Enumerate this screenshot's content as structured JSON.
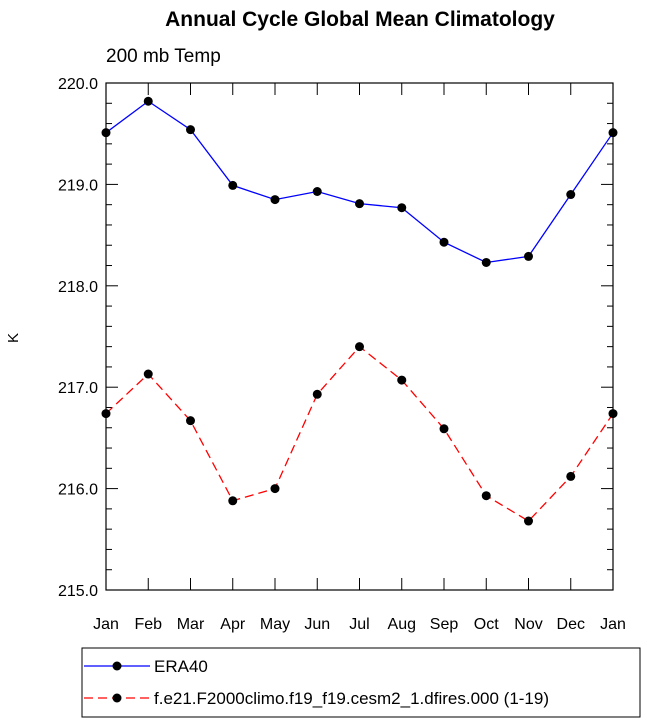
{
  "chart_data": {
    "type": "line",
    "title": "Annual Cycle Global Mean Climatology",
    "subtitle": "200 mb Temp",
    "xlabel": "",
    "ylabel": "K",
    "categories": [
      "Jan",
      "Feb",
      "Mar",
      "Apr",
      "May",
      "Jun",
      "Jul",
      "Aug",
      "Sep",
      "Oct",
      "Nov",
      "Dec",
      "Jan"
    ],
    "ylim": [
      215.0,
      220.0
    ],
    "yticks": [
      "215.0",
      "216.0",
      "217.0",
      "218.0",
      "219.0",
      "220.0"
    ],
    "legend_position": "bottom",
    "series": [
      {
        "name": "ERA40",
        "color": "#0000ff",
        "dash": "solid",
        "marker": "filled-circle",
        "values": [
          219.51,
          219.82,
          219.54,
          218.99,
          218.85,
          218.93,
          218.81,
          218.77,
          218.43,
          218.23,
          218.29,
          218.9,
          219.51
        ]
      },
      {
        "name": "f.e21.F2000climo.f19_f19.cesm2_1.dfires.000 (1-19)",
        "color": "#ff0000",
        "dash": "dashed",
        "marker": "filled-circle",
        "values": [
          216.74,
          217.13,
          216.67,
          215.88,
          216.0,
          216.93,
          217.4,
          217.07,
          216.59,
          215.93,
          215.68,
          216.12,
          216.74
        ]
      }
    ]
  }
}
